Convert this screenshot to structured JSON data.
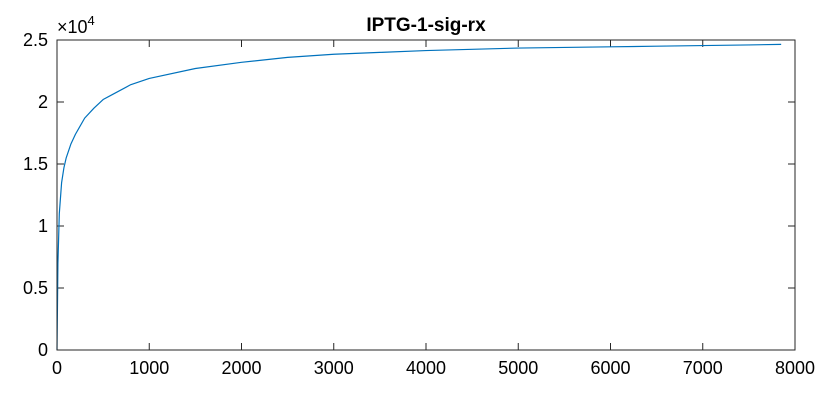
{
  "chart_data": {
    "type": "line",
    "title": "IPTG-1-sig-rx",
    "xlabel": "",
    "ylabel": "",
    "xlim": [
      0,
      8000
    ],
    "ylim": [
      0,
      25000
    ],
    "xticks": [
      0,
      1000,
      2000,
      3000,
      4000,
      5000,
      6000,
      7000,
      8000
    ],
    "xtick_labels": [
      "0",
      "1000",
      "2000",
      "3000",
      "4000",
      "5000",
      "6000",
      "7000",
      "8000"
    ],
    "yticks": [
      0,
      5000,
      10000,
      15000,
      20000,
      25000
    ],
    "ytick_labels": [
      "0",
      "0.5",
      "1",
      "1.5",
      "2",
      "2.5"
    ],
    "y_multiplier": {
      "base": "×10",
      "exponent": "4"
    },
    "grid": false,
    "legend": "none",
    "series": [
      {
        "color": "#0072bd",
        "x": [
          0,
          10,
          25,
          50,
          75,
          100,
          150,
          200,
          300,
          400,
          500,
          600,
          800,
          1000,
          1500,
          2000,
          2500,
          3000,
          3500,
          4000,
          4500,
          5000,
          5500,
          6000,
          6500,
          7000,
          7500,
          7850
        ],
        "y": [
          0,
          7000,
          11000,
          13500,
          14700,
          15500,
          16600,
          17400,
          18700,
          19500,
          20200,
          20600,
          21400,
          21900,
          22700,
          23200,
          23600,
          23850,
          24000,
          24150,
          24250,
          24350,
          24400,
          24450,
          24500,
          24550,
          24600,
          24650
        ]
      }
    ]
  }
}
